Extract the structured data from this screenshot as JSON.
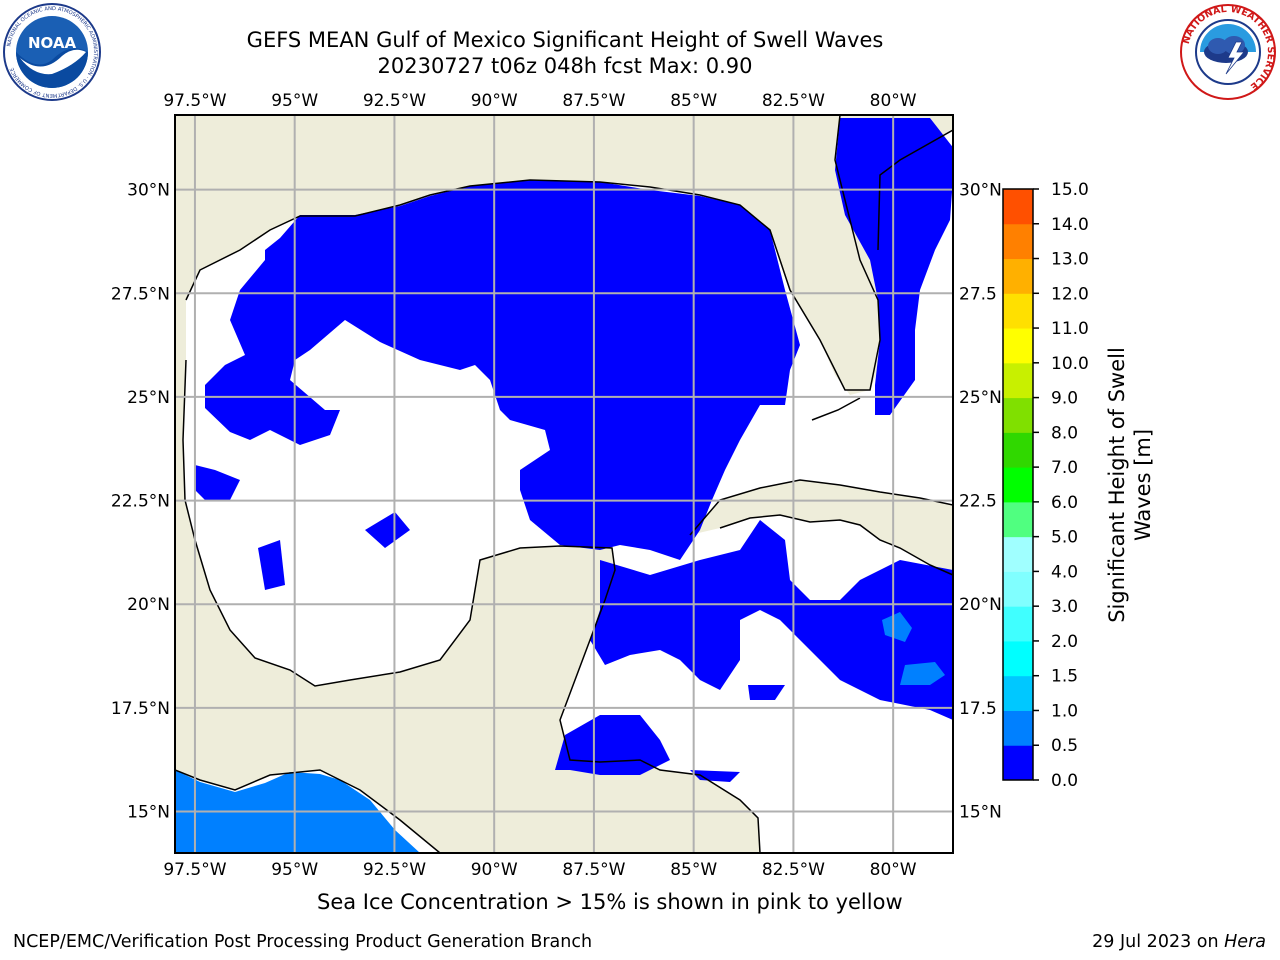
{
  "header": {
    "title_line1": "GEFS MEAN Gulf of Mexico Significant Height of Swell Waves",
    "title_line2": "20230727 t06z 048h fcst   Max: 0.90"
  },
  "logos": {
    "noaa_text": "NOAA",
    "noaa_ring_text": "NATIONAL OCEANIC AND ATMOSPHERIC ADMINISTRATION · U.S. DEPARTMENT OF COMMERCE",
    "nws_ring_text": "NATIONAL WEATHER SERVICE"
  },
  "map": {
    "lon_labels": [
      "97.5°W",
      "95°W",
      "92.5°W",
      "90°W",
      "87.5°W",
      "85°W",
      "82.5°W",
      "80°W"
    ],
    "lat_labels_left": [
      "30°N",
      "27.5°N",
      "25°N",
      "22.5°N",
      "20°N",
      "17.5°N",
      "15°N"
    ],
    "lat_labels_right": [
      "30°N",
      "27.5",
      "25°N",
      "22.5",
      "20°N",
      "17.5",
      "15°N"
    ],
    "extent": {
      "lon_min": -98,
      "lon_max": -78.5,
      "lat_min": 14,
      "lat_max": 31.8
    },
    "colors": {
      "land": "#eeedda",
      "water_lt_05": "#0000ff",
      "water_05_10": "#0080ff",
      "no_data": "#ffffff",
      "grid": "#b0b0b0"
    }
  },
  "colorbar": {
    "label_line1": "Significant Height of Swell",
    "label_line2": "Waves [m]",
    "ticks": [
      "0.0",
      "0.5",
      "1.0",
      "1.5",
      "2.0",
      "3.0",
      "4.0",
      "5.0",
      "6.0",
      "7.0",
      "8.0",
      "9.0",
      "10.0",
      "11.0",
      "12.0",
      "13.0",
      "14.0",
      "15.0"
    ],
    "colors": [
      "#0000ff",
      "#0080ff",
      "#00c8ff",
      "#00ffff",
      "#40ffff",
      "#80ffff",
      "#a0ffff",
      "#50ff80",
      "#00ff00",
      "#30d800",
      "#80e000",
      "#c8f000",
      "#ffff00",
      "#ffe000",
      "#ffb000",
      "#ff8000",
      "#ff5000",
      "#ff2000",
      "#ff0000"
    ]
  },
  "caption": "Sea Ice Concentration > 15% is shown in pink to yellow",
  "footer": {
    "left": "NCEP/EMC/Verification Post Processing Product Generation Branch",
    "right_date": "29 Jul 2023 on ",
    "right_host": "Hera"
  }
}
